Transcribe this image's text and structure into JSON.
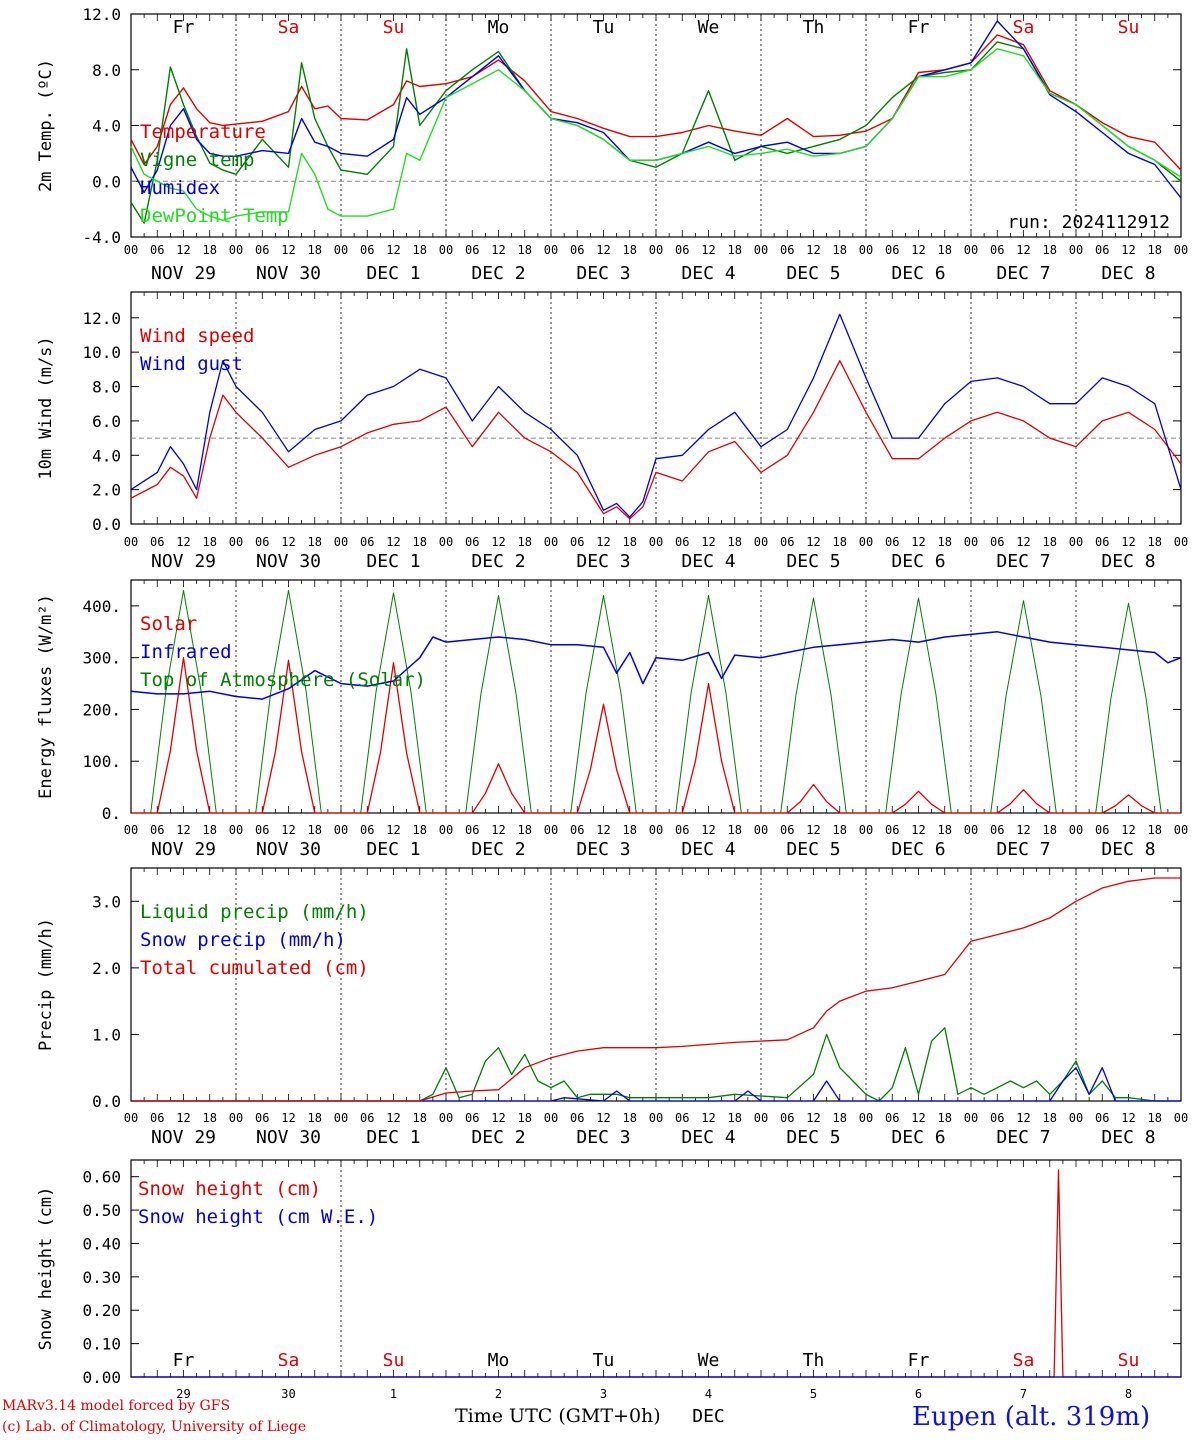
{
  "colors": {
    "red": "#e00000",
    "green": "#007f00",
    "blue": "#0000e0",
    "lightgreen": "#22dd22",
    "grey": "#888888"
  },
  "days": {
    "weekday": [
      "Fr",
      "Sa",
      "Su",
      "Mo",
      "Tu",
      "We",
      "Th",
      "Fr",
      "Sa",
      "Su"
    ],
    "weekend": [
      false,
      true,
      true,
      false,
      false,
      false,
      false,
      false,
      true,
      true
    ],
    "dates": [
      "NOV 29",
      "NOV 30",
      "DEC  1",
      "DEC  2",
      "DEC  3",
      "DEC  4",
      "DEC  5",
      "DEC  6",
      "DEC  7",
      "DEC  8"
    ],
    "day_numbers": [
      "29",
      "30",
      "1",
      "2",
      "3",
      "4",
      "5",
      "6",
      "7",
      "8"
    ],
    "hour_labels": [
      "00",
      "06",
      "12",
      "18"
    ],
    "month_label": "DEC"
  },
  "footer": {
    "credit_line1": "MARv3.14 model forced by GFS",
    "credit_line2": "(c) Lab. of Climatology, University of Liege",
    "time_axis_label": "Time UTC (GMT+0h)",
    "station": "Eupen (alt. 319m)"
  },
  "chart_data": [
    {
      "id": "temp",
      "type": "line",
      "ylabel": "2m Temp. (ºC)",
      "ylim": [
        -4,
        12
      ],
      "yticks": [
        "-4.0",
        "0.0",
        "4.0",
        "8.0",
        "12.0"
      ],
      "reference_line": 0,
      "show_weekdays": true,
      "run_label": "run: 2024112912",
      "x_unit": "hours since NOV 29 00 UTC",
      "series": [
        {
          "name": "Temperature",
          "color": "red",
          "x": [
            0,
            3,
            6,
            9,
            12,
            15,
            18,
            21,
            24,
            30,
            36,
            39,
            42,
            45,
            48,
            54,
            60,
            63,
            66,
            72,
            78,
            84,
            90,
            96,
            102,
            108,
            114,
            120,
            126,
            132,
            138,
            144,
            150,
            156,
            162,
            168,
            174,
            180,
            186,
            192,
            198,
            204,
            210,
            216,
            222,
            228,
            234,
            240
          ],
          "y": [
            3.0,
            1.2,
            2.5,
            5.5,
            6.7,
            5.2,
            4.2,
            4.0,
            4.1,
            4.3,
            5.0,
            6.8,
            5.2,
            5.4,
            4.5,
            4.4,
            5.5,
            7.2,
            6.8,
            7.0,
            7.5,
            8.7,
            7.2,
            5.0,
            4.5,
            3.8,
            3.2,
            3.2,
            3.5,
            4.0,
            3.6,
            3.3,
            4.5,
            3.2,
            3.3,
            3.6,
            4.5,
            7.8,
            8.0,
            8.5,
            10.5,
            9.8,
            6.5,
            5.5,
            4.2,
            3.2,
            2.8,
            0.8
          ]
        },
        {
          "name": "Vigne temp",
          "color": "green",
          "x": [
            0,
            3,
            6,
            9,
            12,
            15,
            18,
            21,
            24,
            30,
            36,
            39,
            42,
            45,
            48,
            54,
            60,
            63,
            66,
            72,
            78,
            84,
            90,
            96,
            102,
            108,
            114,
            120,
            126,
            132,
            138,
            144,
            150,
            156,
            162,
            168,
            174,
            180,
            186,
            192,
            198,
            204,
            210,
            216,
            222,
            228,
            234,
            240
          ],
          "y": [
            -1.5,
            -3.0,
            1.5,
            8.2,
            5.5,
            3.2,
            1.3,
            0.8,
            0.5,
            3.0,
            1.0,
            8.5,
            4.5,
            2.5,
            0.8,
            0.5,
            2.5,
            9.5,
            4.0,
            6.5,
            8.0,
            9.3,
            6.5,
            4.5,
            4.0,
            3.0,
            1.5,
            1.0,
            2.0,
            6.5,
            1.5,
            2.5,
            2.0,
            2.5,
            3.0,
            4.0,
            6.0,
            7.5,
            7.8,
            8.0,
            10.0,
            9.5,
            6.3,
            5.5,
            4.0,
            2.5,
            1.5,
            0.0
          ]
        },
        {
          "name": "Humidex",
          "color": "blue",
          "x": [
            0,
            3,
            6,
            9,
            12,
            15,
            18,
            21,
            24,
            30,
            36,
            39,
            42,
            45,
            48,
            54,
            60,
            63,
            66,
            72,
            78,
            84,
            90,
            96,
            102,
            108,
            114,
            120,
            126,
            132,
            138,
            144,
            150,
            156,
            162,
            168,
            174,
            180,
            186,
            192,
            198,
            204,
            210,
            216,
            222,
            228,
            234,
            240
          ],
          "y": [
            1.0,
            -0.8,
            0.8,
            4.0,
            5.2,
            3.0,
            2.0,
            1.8,
            1.8,
            2.2,
            2.0,
            4.5,
            2.8,
            2.5,
            2.0,
            1.8,
            3.0,
            6.0,
            4.8,
            6.0,
            7.5,
            9.0,
            6.5,
            4.5,
            4.2,
            3.5,
            1.5,
            1.5,
            2.0,
            2.8,
            2.0,
            2.5,
            2.8,
            2.0,
            2.0,
            2.5,
            4.5,
            7.5,
            8.0,
            8.5,
            11.5,
            9.5,
            6.2,
            5.0,
            3.5,
            2.0,
            1.2,
            -1.2
          ]
        },
        {
          "name": "DewPoint Temp",
          "color": "lightgreen",
          "x": [
            0,
            3,
            6,
            9,
            12,
            15,
            18,
            21,
            24,
            30,
            36,
            39,
            42,
            45,
            48,
            54,
            60,
            63,
            66,
            72,
            78,
            84,
            90,
            96,
            102,
            108,
            114,
            120,
            126,
            132,
            138,
            144,
            150,
            156,
            162,
            168,
            174,
            180,
            186,
            192,
            198,
            204,
            210,
            216,
            222,
            228,
            234,
            240
          ],
          "y": [
            2.5,
            0.5,
            0.0,
            -0.5,
            -0.7,
            -2.0,
            -2.5,
            -2.8,
            -2.5,
            -2.2,
            -2.2,
            2.0,
            0.5,
            -2.0,
            -2.5,
            -2.5,
            -2.0,
            2.0,
            1.5,
            6.0,
            7.0,
            8.0,
            6.5,
            4.5,
            4.0,
            3.0,
            1.5,
            1.5,
            2.0,
            2.5,
            1.8,
            2.0,
            2.3,
            1.8,
            2.0,
            2.5,
            4.5,
            7.5,
            7.5,
            8.0,
            9.5,
            9.0,
            6.3,
            5.5,
            4.0,
            2.5,
            1.5,
            0.3
          ]
        }
      ]
    },
    {
      "id": "wind",
      "type": "line",
      "ylabel": "10m Wind (m/s)",
      "ylim": [
        0,
        13.5
      ],
      "yticks": [
        "0.0",
        "2.0",
        "4.0",
        "6.0",
        "8.0",
        "10.0",
        "12.0"
      ],
      "reference_line": 5,
      "x_unit": "hours since NOV 29 00 UTC",
      "series": [
        {
          "name": "Wind speed",
          "color": "red",
          "x": [
            0,
            6,
            9,
            12,
            15,
            18,
            21,
            24,
            30,
            36,
            42,
            48,
            54,
            60,
            66,
            72,
            78,
            84,
            90,
            96,
            102,
            108,
            111,
            114,
            117,
            120,
            126,
            132,
            138,
            144,
            150,
            156,
            162,
            168,
            174,
            180,
            186,
            192,
            198,
            204,
            210,
            216,
            222,
            228,
            234,
            240
          ],
          "y": [
            1.5,
            2.3,
            3.3,
            2.8,
            1.5,
            5.0,
            7.5,
            6.5,
            5.0,
            3.3,
            4.0,
            4.5,
            5.3,
            5.8,
            6.0,
            6.8,
            4.5,
            6.5,
            5.0,
            4.2,
            3.0,
            0.6,
            1.0,
            0.3,
            1.0,
            3.0,
            2.5,
            4.2,
            4.8,
            3.0,
            4.0,
            6.5,
            9.5,
            6.5,
            3.8,
            3.8,
            5.0,
            6.0,
            6.5,
            6.0,
            5.0,
            4.5,
            6.0,
            6.5,
            5.5,
            3.5
          ]
        },
        {
          "name": "Wind gust",
          "color": "blue",
          "x": [
            0,
            6,
            9,
            12,
            15,
            18,
            21,
            24,
            30,
            36,
            42,
            48,
            54,
            60,
            66,
            72,
            78,
            84,
            90,
            96,
            102,
            108,
            111,
            114,
            117,
            120,
            126,
            132,
            138,
            144,
            150,
            156,
            162,
            168,
            174,
            180,
            186,
            192,
            198,
            204,
            210,
            216,
            222,
            228,
            234,
            240
          ],
          "y": [
            2.0,
            3.0,
            4.5,
            3.5,
            2.0,
            6.5,
            9.5,
            8.0,
            6.5,
            4.2,
            5.5,
            6.0,
            7.5,
            8.0,
            9.0,
            8.5,
            6.0,
            8.0,
            6.5,
            5.5,
            4.0,
            0.8,
            1.2,
            0.4,
            1.3,
            3.8,
            4.0,
            5.5,
            6.5,
            4.5,
            5.5,
            8.5,
            12.2,
            8.5,
            5.0,
            5.0,
            7.0,
            8.3,
            8.5,
            8.0,
            7.0,
            7.0,
            8.5,
            8.0,
            7.0,
            2.0
          ]
        }
      ]
    },
    {
      "id": "flux",
      "type": "line",
      "ylabel": "Energy fluxes (W/m²)",
      "ylim": [
        0,
        450
      ],
      "yticks": [
        "0.",
        "100.",
        "200.",
        "300.",
        "400."
      ],
      "x_unit": "hours since NOV 29 00 UTC",
      "daily_peaks_x": [
        12,
        36,
        60,
        84,
        108,
        132,
        156,
        180,
        204,
        228
      ],
      "solar_peaks": [
        300,
        295,
        290,
        95,
        210,
        250,
        55,
        42,
        45,
        35
      ],
      "toa_peaks": [
        430,
        430,
        425,
        420,
        420,
        420,
        415,
        415,
        410,
        405
      ],
      "series_names": [
        "Solar",
        "Infrared",
        "Top of Atmosphere (Solar)"
      ],
      "series_colors": [
        "red",
        "blue",
        "green"
      ],
      "infrared": {
        "x": [
          0,
          6,
          12,
          18,
          24,
          30,
          36,
          42,
          48,
          54,
          60,
          66,
          69,
          72,
          78,
          84,
          90,
          96,
          102,
          108,
          111,
          114,
          117,
          120,
          126,
          132,
          135,
          138,
          144,
          150,
          156,
          162,
          168,
          174,
          180,
          186,
          192,
          198,
          204,
          210,
          216,
          222,
          228,
          234,
          237,
          240
        ],
        "y": [
          235,
          230,
          230,
          235,
          225,
          220,
          240,
          275,
          250,
          245,
          255,
          300,
          340,
          330,
          335,
          340,
          335,
          325,
          325,
          320,
          270,
          310,
          250,
          300,
          295,
          310,
          260,
          305,
          300,
          310,
          320,
          325,
          330,
          335,
          330,
          340,
          345,
          350,
          340,
          330,
          325,
          320,
          315,
          310,
          290,
          300
        ]
      }
    },
    {
      "id": "precip",
      "type": "line",
      "ylabel": "Precip (mm/h)",
      "ylim": [
        0,
        3.5
      ],
      "yticks": [
        "0.0",
        "1.0",
        "2.0",
        "3.0"
      ],
      "x_unit": "hours since NOV 29 00 UTC",
      "series": [
        {
          "name": "Liquid precip (mm/h)",
          "color": "green",
          "x": [
            0,
            66,
            69,
            72,
            75,
            78,
            81,
            84,
            87,
            90,
            93,
            96,
            99,
            102,
            105,
            108,
            111,
            114,
            117,
            120,
            132,
            138,
            150,
            156,
            159,
            162,
            165,
            168,
            171,
            174,
            177,
            180,
            183,
            186,
            189,
            192,
            195,
            198,
            201,
            204,
            207,
            210,
            213,
            216,
            219,
            222,
            225,
            228,
            234,
            240
          ],
          "y": [
            0,
            0,
            0.1,
            0.5,
            0.05,
            0.1,
            0.6,
            0.8,
            0.4,
            0.7,
            0.3,
            0.2,
            0.3,
            0.05,
            0.1,
            0.1,
            0.1,
            0.05,
            0.05,
            0.05,
            0.05,
            0.1,
            0.05,
            0.4,
            1.0,
            0.5,
            0.3,
            0.1,
            0.0,
            0.2,
            0.8,
            0.1,
            0.9,
            1.1,
            0.1,
            0.2,
            0.1,
            0.2,
            0.3,
            0.2,
            0.3,
            0.1,
            0.3,
            0.6,
            0.1,
            0.3,
            0.05,
            0.05,
            0.0,
            0.0
          ]
        },
        {
          "name": "Snow precip (mm/h)",
          "color": "blue",
          "x": [
            0,
            96,
            99,
            108,
            111,
            114,
            138,
            141,
            144,
            156,
            159,
            162,
            210,
            213,
            216,
            219,
            222,
            225,
            240
          ],
          "y": [
            0,
            0,
            0.05,
            0,
            0.15,
            0,
            0,
            0.15,
            0,
            0,
            0.3,
            0,
            0,
            0.3,
            0.5,
            0.1,
            0.5,
            0,
            0
          ]
        },
        {
          "name": "Total cumulated (cm)",
          "color": "red",
          "x": [
            0,
            66,
            72,
            78,
            84,
            90,
            96,
            102,
            108,
            114,
            120,
            126,
            132,
            138,
            144,
            150,
            156,
            159,
            162,
            168,
            174,
            180,
            186,
            192,
            198,
            204,
            210,
            216,
            222,
            228,
            234,
            240
          ],
          "y": [
            0,
            0,
            0.12,
            0.15,
            0.17,
            0.5,
            0.65,
            0.75,
            0.8,
            0.8,
            0.8,
            0.82,
            0.85,
            0.88,
            0.9,
            0.92,
            1.1,
            1.35,
            1.5,
            1.65,
            1.7,
            1.8,
            1.9,
            2.4,
            2.5,
            2.6,
            2.75,
            3.0,
            3.2,
            3.3,
            3.35,
            3.35
          ]
        }
      ]
    },
    {
      "id": "snow",
      "type": "line",
      "ylabel": "Snow height (cm)",
      "ylim": [
        0,
        0.65
      ],
      "yticks": [
        "0.00",
        "0.10",
        "0.20",
        "0.30",
        "0.40",
        "0.50",
        "0.60"
      ],
      "show_weekdays": true,
      "day_number_axis": true,
      "x_unit": "hours since NOV 29 00 UTC",
      "series": [
        {
          "name": "Snow height (cm)",
          "color": "red",
          "x": [
            0,
            211,
            212,
            213,
            240
          ],
          "y": [
            0,
            0,
            0.62,
            0,
            0
          ]
        },
        {
          "name": "Snow height (cm W.E.)",
          "color": "blue",
          "x": [
            0,
            240
          ],
          "y": [
            0,
            0
          ]
        }
      ]
    }
  ]
}
